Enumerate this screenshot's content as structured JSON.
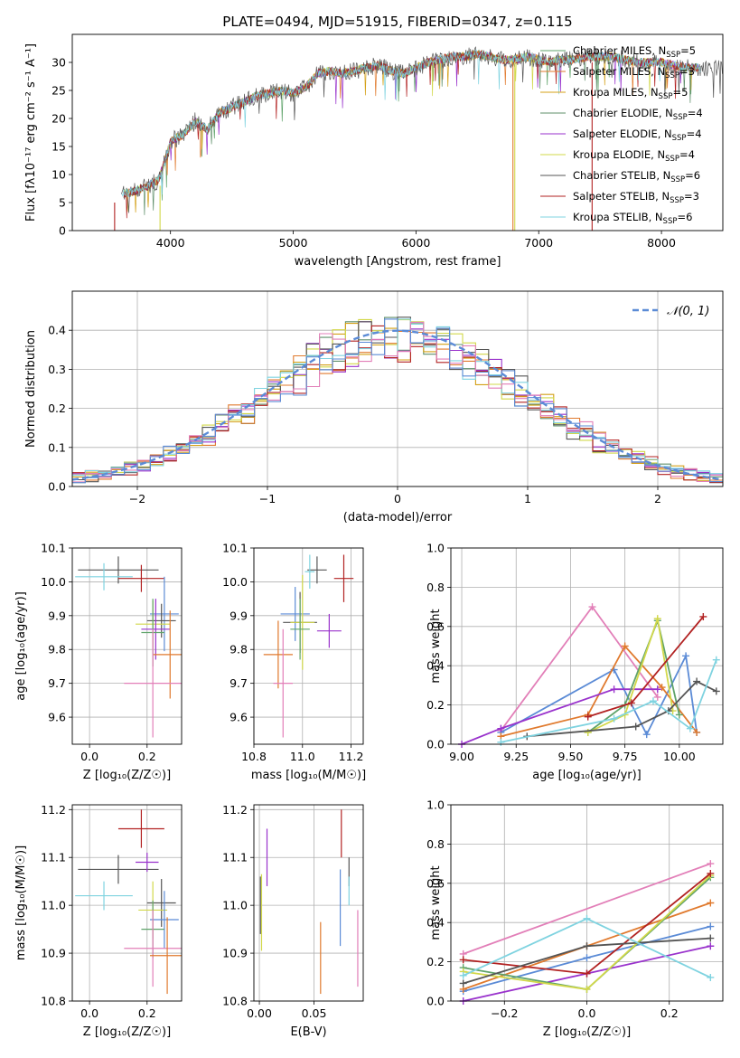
{
  "figure_title": "PLATE=0494, MJD=51915, FIBERID=0347, z=0.115",
  "series_colors": [
    "#555555",
    "#e07a2e",
    "#d4a017",
    "#5fa36a",
    "#9932cc",
    "#d2d84a",
    "#666666",
    "#b22222",
    "#7fd3e0"
  ],
  "chart_data": [
    {
      "id": "spectrum",
      "type": "line",
      "xlabel": "wavelength [Angstrom, rest frame]",
      "ylabel": "Flux [fλ10⁻¹⁷ erg cm⁻² s⁻¹ A⁻¹]",
      "xlim": [
        3200,
        8500
      ],
      "ylim": [
        0,
        35
      ],
      "xticks": [
        4000,
        5000,
        6000,
        7000,
        8000
      ],
      "yticks": [
        0,
        5,
        10,
        15,
        20,
        25,
        30
      ],
      "grid": false,
      "legend_position": "top-right",
      "continuum": {
        "x": [
          3600,
          3700,
          3800,
          3900,
          3950,
          4000,
          4100,
          4200,
          4300,
          4400,
          4500,
          4600,
          4700,
          4800,
          4900,
          5000,
          5100,
          5200,
          5300,
          5400,
          5500,
          5600,
          5700,
          5800,
          5900,
          6000,
          6100,
          6200,
          6300,
          6400,
          6500,
          6600,
          6700,
          6800,
          6900,
          7000,
          7100,
          7200,
          7300,
          7400,
          7500,
          7600,
          7700,
          7800,
          7900,
          8000,
          8100,
          8200,
          8300
        ],
        "y": [
          6.5,
          7.0,
          7.8,
          9.0,
          12.0,
          16.0,
          17.0,
          19.5,
          18.0,
          21.0,
          22.0,
          23.0,
          24.0,
          24.5,
          25.0,
          24.5,
          25.5,
          28.0,
          28.5,
          28.0,
          28.5,
          29.0,
          29.5,
          28.5,
          28.0,
          29.0,
          30.0,
          30.5,
          31.0,
          31.0,
          31.5,
          31.0,
          30.5,
          30.5,
          31.0,
          30.5,
          30.0,
          30.5,
          30.5,
          31.0,
          31.0,
          31.0,
          30.5,
          30.0,
          30.0,
          30.0,
          29.5,
          29.0,
          29.0
        ]
      },
      "series": [
        {
          "name": "Chabrier MILES, N_SSP=5",
          "color": "#5fa36a"
        },
        {
          "name": "Salpeter MILES, N_SSP=3",
          "color": "#e07a2e"
        },
        {
          "name": "Kroupa MILES, N_SSP=5",
          "color": "#d4a017"
        },
        {
          "name": "Chabrier ELODIE, N_SSP=4",
          "color": "#5f8f6a"
        },
        {
          "name": "Salpeter ELODIE, N_SSP=4",
          "color": "#9932cc"
        },
        {
          "name": "Kroupa ELODIE, N_SSP=4",
          "color": "#d2d84a"
        },
        {
          "name": "Chabrier STELIB, N_SSP=6",
          "color": "#555555"
        },
        {
          "name": "Salpeter STELIB, N_SSP=3",
          "color": "#b22222"
        },
        {
          "name": "Kroupa STELIB, N_SSP=6",
          "color": "#7fd3e0"
        }
      ]
    },
    {
      "id": "residuals",
      "type": "line",
      "xlabel": "(data-model)/error",
      "ylabel": "Normed distribution",
      "xlim": [
        -2.5,
        2.5
      ],
      "ylim": [
        0,
        0.5
      ],
      "xticks": [
        -2,
        -1,
        0,
        1,
        2
      ],
      "yticks": [
        0.0,
        0.1,
        0.2,
        0.3,
        0.4
      ],
      "grid": true,
      "legend_position": "top-right",
      "reference_curve": {
        "name": "𝒩(0, 1)",
        "color": "#5b8bd6",
        "style": "dashed"
      },
      "histogram_colors": [
        "#5f8f6a",
        "#e07a2e",
        "#d4a017",
        "#9932cc",
        "#d2d84a",
        "#555555",
        "#b22222",
        "#7fd3e0",
        "#e27fb8",
        "#5b8bd6"
      ]
    },
    {
      "id": "age-vs-Z",
      "type": "scatter",
      "xlabel": "Z [log₁₀(Z/Z☉)]",
      "ylabel": "age  [log₁₀(age/yr)]",
      "xlim": [
        -0.06,
        0.32
      ],
      "ylim": [
        9.52,
        10.1
      ],
      "xticks": [
        0.0,
        0.2
      ],
      "yticks": [
        9.6,
        9.7,
        9.8,
        9.9,
        10.0,
        10.1
      ],
      "grid": true,
      "points": [
        {
          "x": 0.1,
          "y": 10.035,
          "xerr": 0.14,
          "yerr": 0.04,
          "color": "#555555"
        },
        {
          "x": 0.18,
          "y": 10.01,
          "xerr": 0.08,
          "yerr": 0.04,
          "color": "#b22222"
        },
        {
          "x": 0.05,
          "y": 10.015,
          "xerr": 0.1,
          "yerr": 0.04,
          "color": "#7fd3e0"
        },
        {
          "x": 0.26,
          "y": 9.905,
          "xerr": 0.05,
          "yerr": 0.11,
          "color": "#5b8bd6"
        },
        {
          "x": 0.25,
          "y": 9.885,
          "xerr": 0.05,
          "yerr": 0.05,
          "color": "#555555"
        },
        {
          "x": 0.22,
          "y": 9.875,
          "xerr": 0.06,
          "yerr": 0.07,
          "color": "#d2d84a"
        },
        {
          "x": 0.23,
          "y": 9.86,
          "xerr": 0.05,
          "yerr": 0.09,
          "color": "#9932cc"
        },
        {
          "x": 0.22,
          "y": 9.85,
          "xerr": 0.04,
          "yerr": 0.1,
          "color": "#5fa36a"
        },
        {
          "x": 0.28,
          "y": 9.785,
          "xerr": 0.06,
          "yerr": 0.13,
          "color": "#e07a2e"
        },
        {
          "x": 0.22,
          "y": 9.7,
          "xerr": 0.1,
          "yerr": 0.16,
          "color": "#e27fb8"
        }
      ]
    },
    {
      "id": "age-vs-mass",
      "type": "scatter",
      "xlabel": "mass [log₁₀(M/M☉)]",
      "ylabel": "",
      "xlim": [
        10.8,
        11.25
      ],
      "ylim": [
        9.52,
        10.1
      ],
      "xticks": [
        10.8,
        11.0,
        11.2
      ],
      "yticks": [
        9.6,
        9.7,
        9.8,
        9.9,
        10.0,
        10.1
      ],
      "grid": true,
      "points": [
        {
          "x": 11.06,
          "y": 10.035,
          "xerr": 0.04,
          "yerr": 0.04,
          "color": "#555555"
        },
        {
          "x": 11.17,
          "y": 10.01,
          "xerr": 0.04,
          "yerr": 0.07,
          "color": "#b22222"
        },
        {
          "x": 11.03,
          "y": 10.03,
          "xerr": 0.02,
          "yerr": 0.05,
          "color": "#7fd3e0"
        },
        {
          "x": 10.97,
          "y": 9.905,
          "xerr": 0.06,
          "yerr": 0.08,
          "color": "#5b8bd6"
        },
        {
          "x": 10.99,
          "y": 9.88,
          "xerr": 0.07,
          "yerr": 0.09,
          "color": "#555555"
        },
        {
          "x": 11.0,
          "y": 9.88,
          "xerr": 0.05,
          "yerr": 0.14,
          "color": "#d2d84a"
        },
        {
          "x": 11.11,
          "y": 9.855,
          "xerr": 0.05,
          "yerr": 0.05,
          "color": "#9932cc"
        },
        {
          "x": 10.99,
          "y": 9.86,
          "xerr": 0.04,
          "yerr": 0.09,
          "color": "#5fa36a"
        },
        {
          "x": 10.9,
          "y": 9.785,
          "xerr": 0.06,
          "yerr": 0.1,
          "color": "#e07a2e"
        },
        {
          "x": 10.92,
          "y": 9.7,
          "xerr": 0.04,
          "yerr": 0.16,
          "color": "#e27fb8"
        }
      ]
    },
    {
      "id": "mass-weight-vs-age",
      "type": "line",
      "xlabel": "age  [log₁₀(age/yr)]",
      "ylabel": "mass weight",
      "xlim": [
        8.95,
        10.2
      ],
      "ylim": [
        0,
        1
      ],
      "xticks": [
        9.0,
        9.25,
        9.5,
        9.75,
        10.0
      ],
      "yticks": [
        0.0,
        0.2,
        0.4,
        0.6,
        0.8,
        1.0
      ],
      "grid": true,
      "series": [
        {
          "color": "#e27fb8",
          "x": [
            9.18,
            9.6,
            9.9
          ],
          "y": [
            0.07,
            0.7,
            0.24
          ]
        },
        {
          "color": "#5b8bd6",
          "x": [
            9.18,
            9.7,
            9.85,
            10.03,
            10.08
          ],
          "y": [
            0.06,
            0.38,
            0.05,
            0.45,
            0.06
          ]
        },
        {
          "color": "#e07a2e",
          "x": [
            9.18,
            9.58,
            9.75,
            9.92,
            10.08
          ],
          "y": [
            0.04,
            0.15,
            0.5,
            0.29,
            0.06
          ]
        },
        {
          "color": "#9932cc",
          "x": [
            9.0,
            9.18,
            9.7,
            9.9
          ],
          "y": [
            0.0,
            0.08,
            0.28,
            0.28
          ]
        },
        {
          "color": "#5fa36a",
          "x": [
            9.58,
            9.75,
            9.9,
            10.0
          ],
          "y": [
            0.06,
            0.2,
            0.63,
            0.15
          ]
        },
        {
          "color": "#d2d84a",
          "x": [
            9.58,
            9.75,
            9.9,
            9.97
          ],
          "y": [
            0.06,
            0.15,
            0.64,
            0.17
          ]
        },
        {
          "color": "#b22222",
          "x": [
            9.58,
            9.78,
            10.11
          ],
          "y": [
            0.14,
            0.21,
            0.65
          ]
        },
        {
          "color": "#555555",
          "x": [
            9.3,
            9.8,
            9.95,
            10.08,
            10.17
          ],
          "y": [
            0.04,
            0.09,
            0.17,
            0.32,
            0.27
          ]
        },
        {
          "color": "#7fd3e0",
          "x": [
            9.18,
            9.7,
            9.88,
            10.05,
            10.17
          ],
          "y": [
            0.01,
            0.13,
            0.22,
            0.08,
            0.43
          ]
        }
      ]
    },
    {
      "id": "mass-vs-Z",
      "type": "scatter",
      "xlabel": "Z [log₁₀(Z/Z☉)]",
      "ylabel": "mass [log₁₀(M/M☉)]",
      "xlim": [
        -0.06,
        0.32
      ],
      "ylim": [
        10.8,
        11.21
      ],
      "xticks": [
        0.0,
        0.2
      ],
      "yticks": [
        10.8,
        10.9,
        11.0,
        11.1,
        11.2
      ],
      "grid": true,
      "points": [
        {
          "x": 0.18,
          "y": 11.16,
          "xerr": 0.08,
          "yerr": 0.04,
          "color": "#b22222"
        },
        {
          "x": 0.1,
          "y": 11.075,
          "xerr": 0.14,
          "yerr": 0.03,
          "color": "#555555"
        },
        {
          "x": 0.2,
          "y": 11.09,
          "xerr": 0.04,
          "yerr": 0.02,
          "color": "#9932cc"
        },
        {
          "x": 0.05,
          "y": 11.02,
          "xerr": 0.1,
          "yerr": 0.03,
          "color": "#7fd3e0"
        },
        {
          "x": 0.25,
          "y": 11.005,
          "xerr": 0.05,
          "yerr": 0.05,
          "color": "#555555"
        },
        {
          "x": 0.22,
          "y": 10.99,
          "xerr": 0.05,
          "yerr": 0.06,
          "color": "#d2d84a"
        },
        {
          "x": 0.26,
          "y": 10.97,
          "xerr": 0.05,
          "yerr": 0.06,
          "color": "#5b8bd6"
        },
        {
          "x": 0.22,
          "y": 10.95,
          "xerr": 0.04,
          "yerr": 0.06,
          "color": "#5fa36a"
        },
        {
          "x": 0.22,
          "y": 10.91,
          "xerr": 0.1,
          "yerr": 0.08,
          "color": "#e27fb8"
        },
        {
          "x": 0.27,
          "y": 10.895,
          "xerr": 0.06,
          "yerr": 0.08,
          "color": "#e07a2e"
        }
      ]
    },
    {
      "id": "mass-vs-ebv",
      "type": "scatter",
      "xlabel": "E(B-V)",
      "ylabel": "",
      "xlim": [
        -0.005,
        0.095
      ],
      "ylim": [
        10.8,
        11.21
      ],
      "xticks": [
        0.0,
        0.05
      ],
      "yticks": [
        10.8,
        10.9,
        11.0,
        11.1,
        11.2
      ],
      "grid": true,
      "points": [
        {
          "x": 0.075,
          "y": 11.15,
          "xerr": 0,
          "yerr": 0.05,
          "color": "#b22222"
        },
        {
          "x": 0.007,
          "y": 11.1,
          "xerr": 0,
          "yerr": 0.06,
          "color": "#9932cc"
        },
        {
          "x": 0.082,
          "y": 11.07,
          "xerr": 0,
          "yerr": 0.03,
          "color": "#555555"
        },
        {
          "x": 0.082,
          "y": 11.03,
          "xerr": 0,
          "yerr": 0.03,
          "color": "#7fd3e0"
        },
        {
          "x": 0.074,
          "y": 10.995,
          "xerr": 0,
          "yerr": 0.08,
          "color": "#5b8bd6"
        },
        {
          "x": 0.001,
          "y": 11.0,
          "xerr": 0,
          "yerr": 0.06,
          "color": "#555555"
        },
        {
          "x": 0.002,
          "y": 10.985,
          "xerr": 0,
          "yerr": 0.08,
          "color": "#d2d84a"
        },
        {
          "x": 0.056,
          "y": 10.89,
          "xerr": 0,
          "yerr": 0.075,
          "color": "#e07a2e"
        },
        {
          "x": 0.09,
          "y": 10.91,
          "xerr": 0,
          "yerr": 0.08,
          "color": "#e27fb8"
        }
      ]
    },
    {
      "id": "mass-weight-vs-Z",
      "type": "line",
      "xlabel": "Z [log₁₀(Z/Z☉)]",
      "ylabel": "mass weight",
      "xlim": [
        -0.33,
        0.33
      ],
      "ylim": [
        0,
        1
      ],
      "xticks": [
        -0.2,
        0.0,
        0.2
      ],
      "yticks": [
        0.0,
        0.2,
        0.4,
        0.6,
        0.8,
        1.0
      ],
      "grid": true,
      "series": [
        {
          "color": "#e27fb8",
          "x": [
            -0.3,
            0.3
          ],
          "y": [
            0.24,
            0.7
          ]
        },
        {
          "color": "#5b8bd6",
          "x": [
            -0.3,
            0.0,
            0.3
          ],
          "y": [
            0.05,
            0.22,
            0.38
          ]
        },
        {
          "color": "#e07a2e",
          "x": [
            -0.3,
            0.0,
            0.3
          ],
          "y": [
            0.06,
            0.28,
            0.5
          ]
        },
        {
          "color": "#9932cc",
          "x": [
            -0.3,
            0.0,
            0.3
          ],
          "y": [
            0.0,
            0.14,
            0.28
          ]
        },
        {
          "color": "#5fa36a",
          "x": [
            -0.3,
            0.0,
            0.3
          ],
          "y": [
            0.17,
            0.06,
            0.63
          ]
        },
        {
          "color": "#d2d84a",
          "x": [
            -0.3,
            0.0,
            0.3
          ],
          "y": [
            0.15,
            0.06,
            0.64
          ]
        },
        {
          "color": "#b22222",
          "x": [
            -0.3,
            0.0,
            0.3
          ],
          "y": [
            0.21,
            0.14,
            0.65
          ]
        },
        {
          "color": "#555555",
          "x": [
            -0.3,
            0.0,
            0.3
          ],
          "y": [
            0.09,
            0.28,
            0.32
          ]
        },
        {
          "color": "#7fd3e0",
          "x": [
            -0.3,
            0.0,
            0.3
          ],
          "y": [
            0.13,
            0.42,
            0.12
          ]
        }
      ]
    }
  ]
}
